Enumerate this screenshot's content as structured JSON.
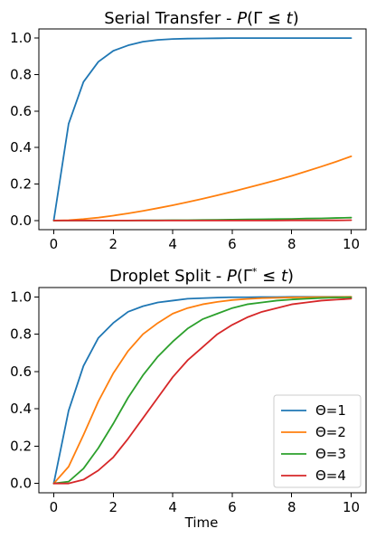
{
  "chart_data": [
    {
      "type": "line",
      "title": "Serial Transfer - P(Γ ≤ t)",
      "title_parts": [
        "Serial Transfer - ",
        "P",
        "(Γ ≤ ",
        "t",
        ")"
      ],
      "xlabel": "",
      "ylabel": "",
      "xlim": [
        -0.5,
        10.5
      ],
      "ylim": [
        -0.05,
        1.05
      ],
      "xticks": [
        0,
        2,
        4,
        6,
        8,
        10
      ],
      "yticks": [
        0.0,
        0.2,
        0.4,
        0.6,
        0.8,
        1.0
      ],
      "xtick_labels": [
        "0",
        "2",
        "4",
        "6",
        "8",
        "10"
      ],
      "ytick_labels": [
        "0.0",
        "0.2",
        "0.4",
        "0.6",
        "0.8",
        "1.0"
      ],
      "grid": false,
      "x": [
        0,
        0.5,
        1,
        1.5,
        2,
        2.5,
        3,
        3.5,
        4,
        4.5,
        5,
        5.5,
        6,
        6.5,
        7,
        7.5,
        8,
        8.5,
        9,
        9.5,
        10
      ],
      "series": [
        {
          "color": "#1f77b4",
          "values": [
            0.0,
            0.53,
            0.76,
            0.87,
            0.93,
            0.96,
            0.98,
            0.99,
            0.995,
            0.997,
            0.998,
            0.999,
            1.0,
            1.0,
            1.0,
            1.0,
            1.0,
            1.0,
            1.0,
            1.0,
            1.0
          ]
        },
        {
          "color": "#ff7f0e",
          "values": [
            0.0,
            0.002,
            0.008,
            0.016,
            0.027,
            0.039,
            0.053,
            0.068,
            0.084,
            0.101,
            0.119,
            0.138,
            0.158,
            0.179,
            0.2,
            0.222,
            0.245,
            0.27,
            0.296,
            0.323,
            0.352
          ]
        },
        {
          "color": "#2ca02c",
          "values": [
            0.0,
            0.0,
            0.0,
            0.0,
            0.0,
            0.0,
            0.001,
            0.001,
            0.002,
            0.002,
            0.003,
            0.004,
            0.005,
            0.006,
            0.007,
            0.008,
            0.009,
            0.011,
            0.012,
            0.014,
            0.016
          ]
        },
        {
          "color": "#d62728",
          "values": [
            0.0,
            0.0,
            0.0,
            0.0,
            0.0,
            0.0,
            0.0,
            0.0,
            0.0,
            0.0,
            0.0,
            0.0,
            0.0,
            0.0,
            0.0,
            0.0,
            0.001,
            0.001,
            0.001,
            0.001,
            0.002
          ]
        }
      ]
    },
    {
      "type": "line",
      "title": "Droplet Split - P(Γ* ≤ t)",
      "title_parts": [
        "Droplet Split - ",
        "P",
        "(Γ",
        "*",
        " ≤ ",
        "t",
        ")"
      ],
      "xlabel": "Time",
      "ylabel": "",
      "xlim": [
        -0.5,
        10.5
      ],
      "ylim": [
        -0.05,
        1.05
      ],
      "xticks": [
        0,
        2,
        4,
        6,
        8,
        10
      ],
      "yticks": [
        0.0,
        0.2,
        0.4,
        0.6,
        0.8,
        1.0
      ],
      "xtick_labels": [
        "0",
        "2",
        "4",
        "6",
        "8",
        "10"
      ],
      "ytick_labels": [
        "0.0",
        "0.2",
        "0.4",
        "0.6",
        "0.8",
        "1.0"
      ],
      "grid": false,
      "legend_position": "lower-right",
      "x": [
        0,
        0.5,
        1,
        1.5,
        2,
        2.5,
        3,
        3.5,
        4,
        4.5,
        5,
        5.5,
        6,
        6.5,
        7,
        7.5,
        8,
        8.5,
        9,
        9.5,
        10
      ],
      "series": [
        {
          "name": "Θ=1",
          "color": "#1f77b4",
          "values": [
            0.0,
            0.39,
            0.63,
            0.78,
            0.86,
            0.92,
            0.95,
            0.97,
            0.98,
            0.99,
            0.993,
            0.996,
            0.998,
            0.998,
            0.999,
            0.999,
            1.0,
            1.0,
            1.0,
            1.0,
            1.0
          ]
        },
        {
          "name": "Θ=2",
          "color": "#ff7f0e",
          "values": [
            0.0,
            0.09,
            0.26,
            0.44,
            0.59,
            0.71,
            0.8,
            0.86,
            0.91,
            0.94,
            0.96,
            0.973,
            0.983,
            0.989,
            0.993,
            0.995,
            0.997,
            0.998,
            0.999,
            0.999,
            1.0
          ]
        },
        {
          "name": "Θ=3",
          "color": "#2ca02c",
          "values": [
            0.0,
            0.01,
            0.08,
            0.19,
            0.32,
            0.46,
            0.58,
            0.68,
            0.76,
            0.83,
            0.88,
            0.91,
            0.94,
            0.96,
            0.97,
            0.98,
            0.986,
            0.99,
            0.994,
            0.996,
            0.997
          ]
        },
        {
          "name": "Θ=4",
          "color": "#d62728",
          "values": [
            0.0,
            0.0,
            0.02,
            0.07,
            0.14,
            0.24,
            0.35,
            0.46,
            0.57,
            0.66,
            0.73,
            0.8,
            0.85,
            0.89,
            0.92,
            0.94,
            0.96,
            0.97,
            0.98,
            0.985,
            0.99
          ]
        }
      ]
    }
  ]
}
